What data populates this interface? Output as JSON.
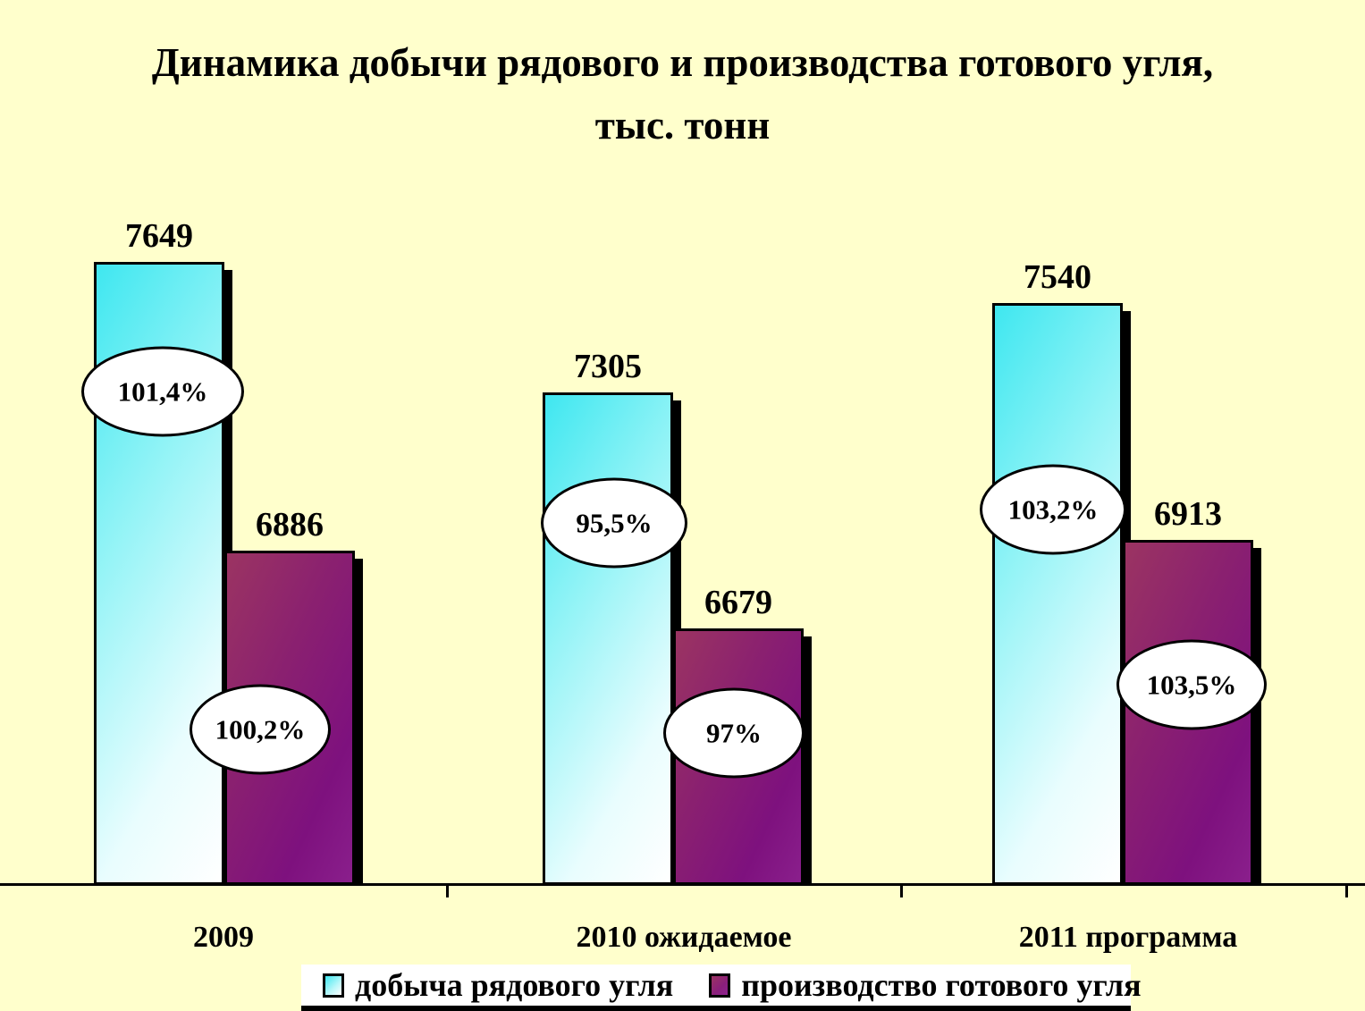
{
  "colors": {
    "background": "#FFFFCC",
    "series_raw_coal_start": "#3FE7F0",
    "series_raw_coal_end": "#FFFFFF",
    "series_finished_coal_start": "#9B3462",
    "series_finished_coal_end": "#8A1F8C",
    "axis": "#000000",
    "callout_fill": "#FFFFFF",
    "callout_border": "#000000",
    "legend_background": "#FFFFFF",
    "text": "#000000"
  },
  "chart_data": {
    "type": "bar",
    "title": "Динамика добычи рядового и производства готового угля, тыс. тонн",
    "categories": [
      "2009",
      "2010 ожидаемое",
      "2011 программа"
    ],
    "series": [
      {
        "name": "добыча рядового угля",
        "values": [
          7649,
          7305,
          7540
        ],
        "percent_labels": [
          "101,4%",
          "95,5%",
          "103,2%"
        ]
      },
      {
        "name": "производство готового угля",
        "values": [
          6886,
          6679,
          6913
        ],
        "percent_labels": [
          "100,2%",
          "97%",
          "103,5%"
        ]
      }
    ],
    "xlabel": "",
    "ylabel": "",
    "ylim": [
      6000,
      7870
    ],
    "y_axis_visible": false,
    "grid": false,
    "legend_position": "bottom",
    "bar_value_labels_visible": true
  }
}
